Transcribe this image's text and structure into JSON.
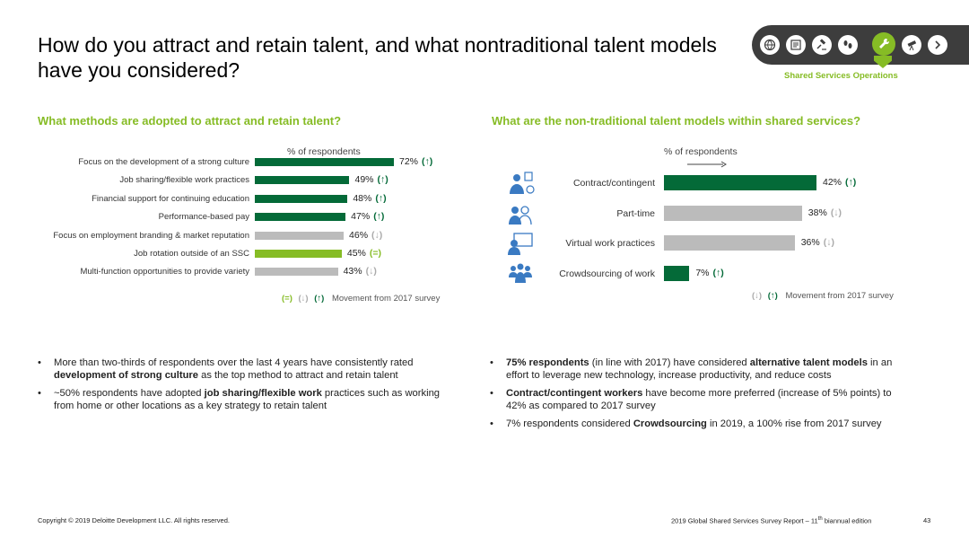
{
  "title": "How do you attract and retain talent, and what nontraditional talent models have you considered?",
  "nav": {
    "icons": [
      "globe-icon",
      "certificate-icon",
      "gavel-icon",
      "footprints-icon",
      "wrench-icon",
      "telescope-icon",
      "next-arrow-icon"
    ],
    "active_index": 4,
    "section_label": "Shared Services Operations"
  },
  "left": {
    "heading": "What methods are adopted to attract and retain talent?",
    "axis_label": "% of respondents",
    "legend": {
      "same": "(=)",
      "down": "(↓)",
      "up": "(↑)",
      "text": "Movement from 2017 survey"
    },
    "bullets": [
      {
        "pre": "More than two-thirds of respondents over the last 4 years have consistently rated ",
        "bold": "development of strong culture",
        "post": " as the top method to attract and retain talent"
      },
      {
        "pre": "~50% respondents have adopted ",
        "bold": "job sharing/flexible work",
        "post": " practices such as working from home or other locations as a key strategy to retain talent"
      }
    ]
  },
  "right": {
    "heading": "What are the non-traditional talent models within shared services?",
    "axis_label": "% of respondents",
    "legend": {
      "down": "(↓)",
      "up": "(↑)",
      "text": "Movement from 2017 survey"
    },
    "bullets": [
      {
        "pre": "",
        "bold": "75% respondents",
        "post": " (in line with 2017) have considered ",
        "bold2": "alternative talent models",
        "post2": " in an effort to leverage new technology, increase productivity, and reduce costs"
      },
      {
        "pre": "",
        "bold": "Contract/contingent workers",
        "post": " have become more preferred (increase of 5% points) to 42% as compared to 2017 survey",
        "bold2": "",
        "post2": ""
      },
      {
        "pre": "7% respondents considered ",
        "bold": "Crowdsourcing",
        "post": " in 2019, a 100% rise from 2017 survey",
        "bold2": "",
        "post2": ""
      }
    ]
  },
  "chart_data": [
    {
      "type": "bar",
      "orientation": "horizontal",
      "categories": [
        "Focus on the development of a strong culture",
        "Job sharing/flexible work practices",
        "Financial support for continuing education",
        "Performance-based pay",
        "Focus on employment branding & market reputation",
        "Job rotation outside of an SSC",
        "Multi-function opportunities to provide variety"
      ],
      "values": [
        72,
        49,
        48,
        47,
        46,
        45,
        43
      ],
      "value_labels": [
        "72%",
        "49%",
        "48%",
        "47%",
        "46%",
        "45%",
        "43%"
      ],
      "movement": [
        "(↑)",
        "(↑)",
        "(↑)",
        "(↑)",
        "(↓)",
        "(=)",
        "(↓)"
      ],
      "status": [
        "up",
        "up",
        "up",
        "up",
        "down",
        "same",
        "down"
      ],
      "xlabel": "% of respondents",
      "colors": {
        "up": "#046a38",
        "down": "#bbbbbb",
        "same": "#86bc25"
      }
    },
    {
      "type": "bar",
      "orientation": "horizontal",
      "categories": [
        "Contract/contingent",
        "Part-time",
        "Virtual work practices",
        "Crowdsourcing of work"
      ],
      "values": [
        42,
        38,
        36,
        7
      ],
      "value_labels": [
        "42%",
        "38%",
        "36%",
        "7%"
      ],
      "movement": [
        "(↑)",
        "(↓)",
        "(↓)",
        "(↑)"
      ],
      "status": [
        "up",
        "down",
        "down",
        "up"
      ],
      "icons": [
        "contractor-icon",
        "part-time-icon",
        "virtual-work-icon",
        "crowd-icon"
      ],
      "xlabel": "% of respondents",
      "colors": {
        "up": "#046a38",
        "down": "#bbbbbb"
      }
    }
  ],
  "footer": {
    "copyright": "Copyright © 2019 Deloitte Development LLC. All rights reserved.",
    "report_pre": "2019 Global Shared Services Survey Report – 11",
    "report_sup": "th",
    "report_post": " biannual edition",
    "page": "43"
  }
}
